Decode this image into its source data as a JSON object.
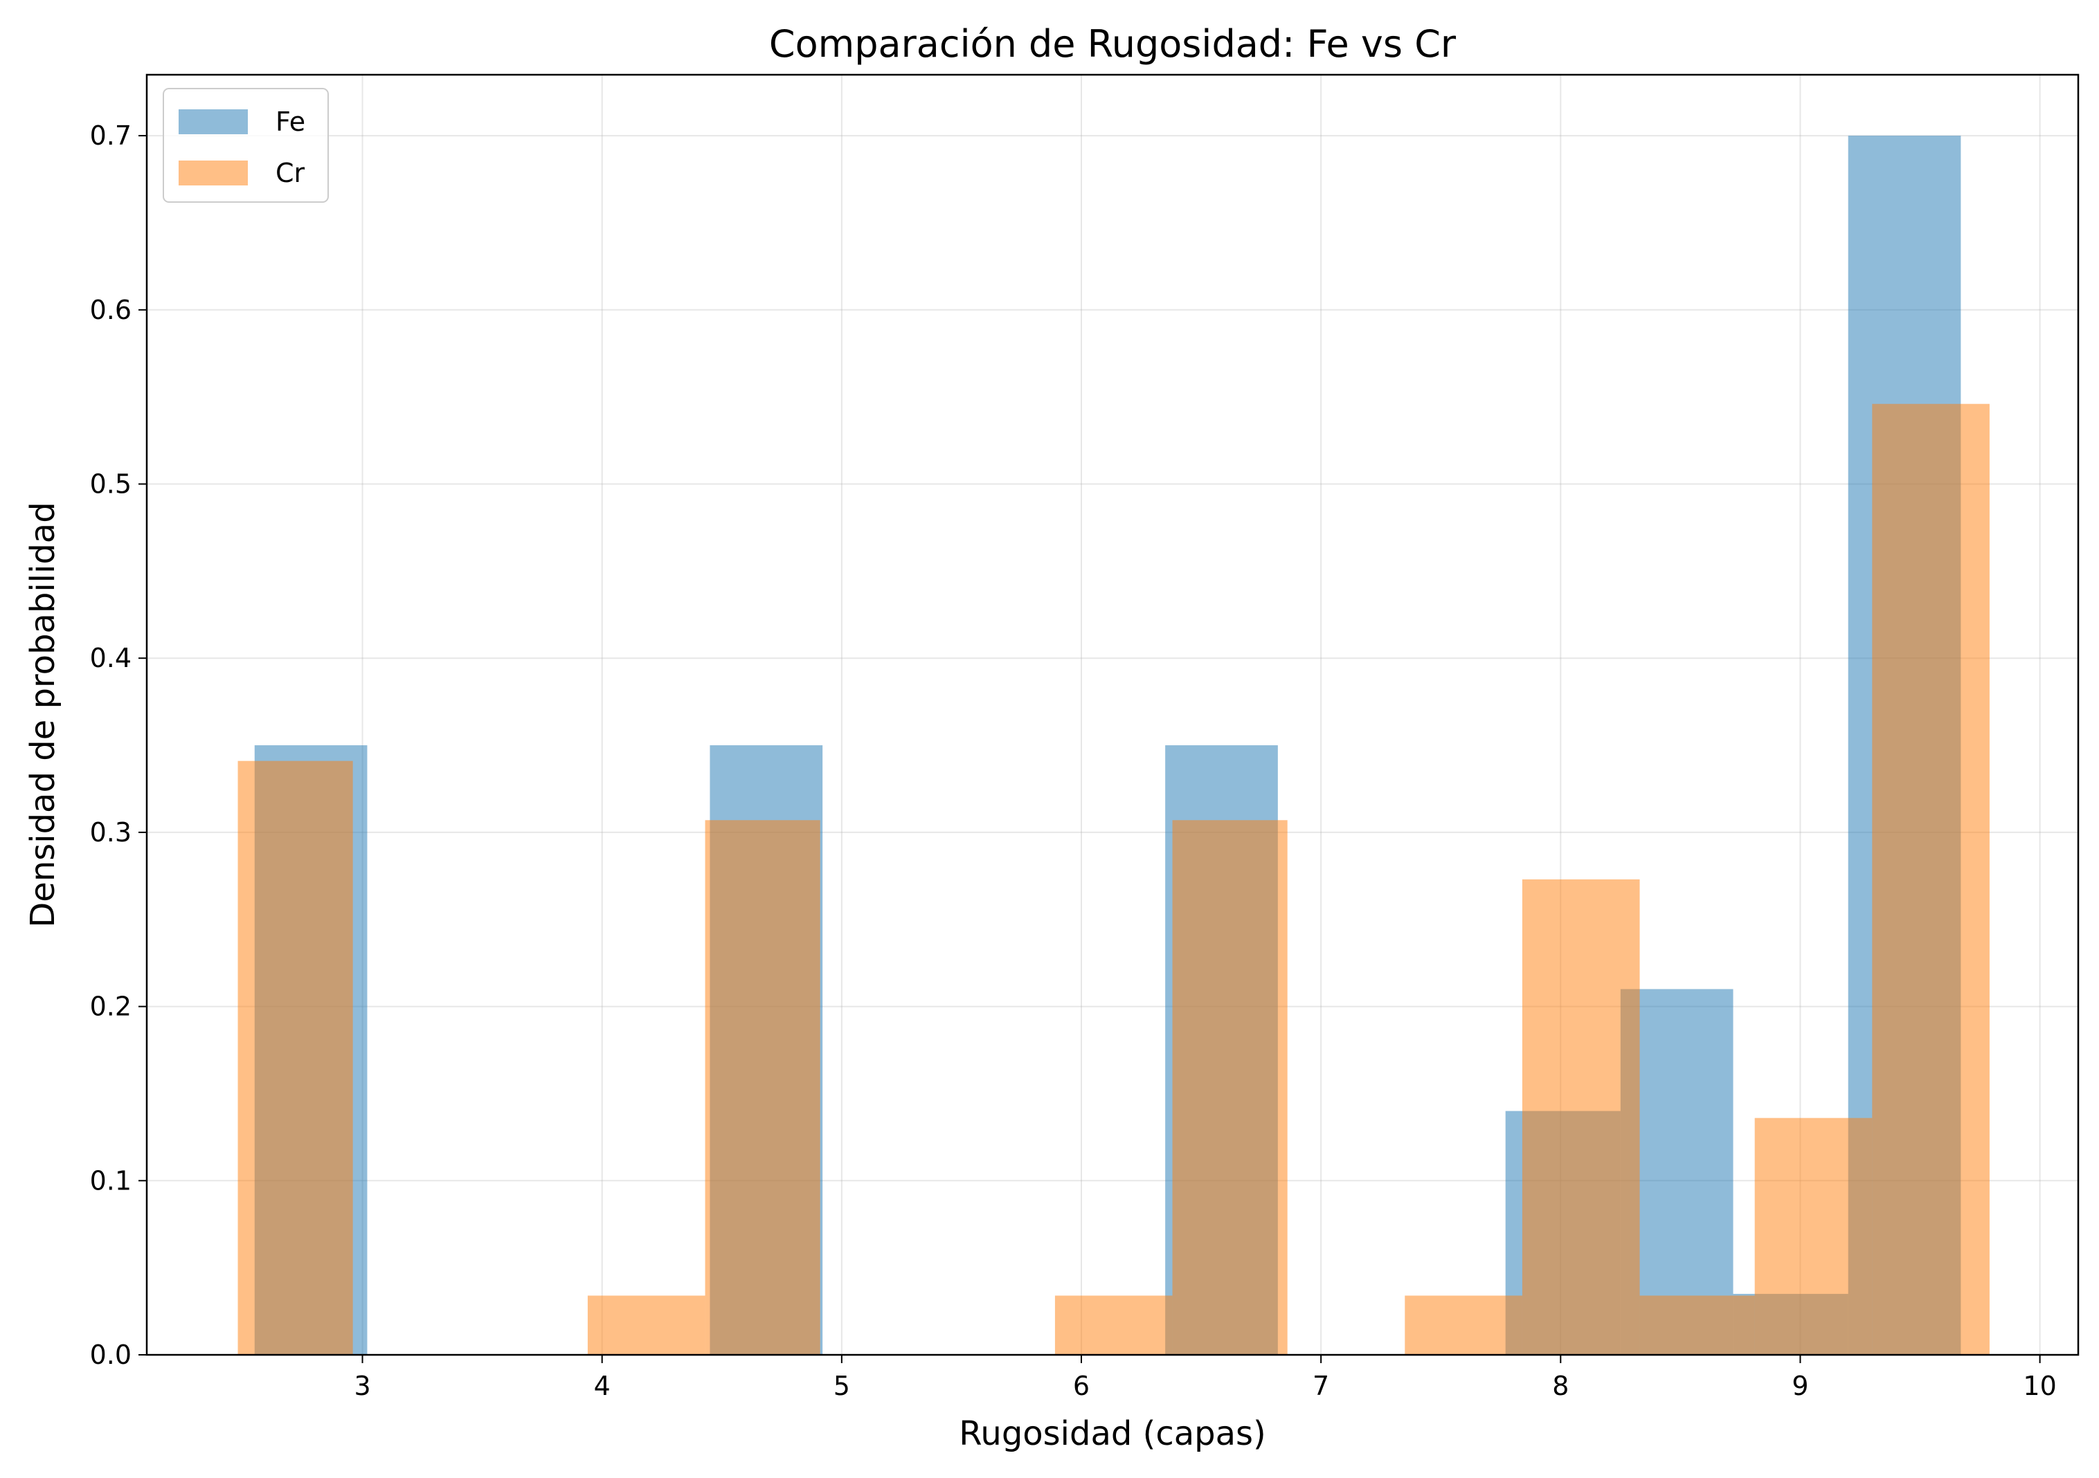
{
  "chart_data": {
    "type": "bar",
    "title": "Comparación de Rugosidad: Fe vs Cr",
    "xlabel": "Rugosidad (capas)",
    "ylabel": "Densidad de probabilidad",
    "xlim": [
      2.1,
      10.16
    ],
    "ylim": [
      0,
      0.735
    ],
    "xticks": [
      "3",
      "4",
      "5",
      "6",
      "7",
      "8",
      "9",
      "10"
    ],
    "yticks": [
      "0.0",
      "0.1",
      "0.2",
      "0.3",
      "0.4",
      "0.5",
      "0.6",
      "0.7"
    ],
    "grid": true,
    "legend_position": "top-left",
    "alpha": 0.5,
    "series": [
      {
        "name": "Fe",
        "color": "#1f77b4",
        "bins": [
          {
            "x0": 2.55,
            "x1": 3.02,
            "density": 0.35
          },
          {
            "x0": 3.02,
            "x1": 3.5,
            "density": 0.0
          },
          {
            "x0": 3.5,
            "x1": 3.97,
            "density": 0.0
          },
          {
            "x0": 3.97,
            "x1": 4.45,
            "density": 0.0
          },
          {
            "x0": 4.45,
            "x1": 4.92,
            "density": 0.35
          },
          {
            "x0": 4.92,
            "x1": 5.4,
            "density": 0.0
          },
          {
            "x0": 5.4,
            "x1": 5.87,
            "density": 0.0
          },
          {
            "x0": 5.87,
            "x1": 6.35,
            "density": 0.0
          },
          {
            "x0": 6.35,
            "x1": 6.82,
            "density": 0.35
          },
          {
            "x0": 6.82,
            "x1": 7.3,
            "density": 0.0
          },
          {
            "x0": 7.3,
            "x1": 7.77,
            "density": 0.0
          },
          {
            "x0": 7.77,
            "x1": 8.25,
            "density": 0.14
          },
          {
            "x0": 8.25,
            "x1": 8.72,
            "density": 0.21
          },
          {
            "x0": 8.72,
            "x1": 9.2,
            "density": 0.035
          },
          {
            "x0": 9.2,
            "x1": 9.67,
            "density": 0.7
          }
        ]
      },
      {
        "name": "Cr",
        "color": "#ff7f0e",
        "bins": [
          {
            "x0": 2.48,
            "x1": 2.96,
            "density": 0.341
          },
          {
            "x0": 2.96,
            "x1": 3.45,
            "density": 0.0
          },
          {
            "x0": 3.45,
            "x1": 3.94,
            "density": 0.0
          },
          {
            "x0": 3.94,
            "x1": 4.43,
            "density": 0.034
          },
          {
            "x0": 4.43,
            "x1": 4.91,
            "density": 0.307
          },
          {
            "x0": 4.91,
            "x1": 5.4,
            "density": 0.0
          },
          {
            "x0": 5.4,
            "x1": 5.89,
            "density": 0.0
          },
          {
            "x0": 5.89,
            "x1": 6.38,
            "density": 0.034
          },
          {
            "x0": 6.38,
            "x1": 6.86,
            "density": 0.307
          },
          {
            "x0": 6.86,
            "x1": 7.35,
            "density": 0.0
          },
          {
            "x0": 7.35,
            "x1": 7.84,
            "density": 0.034
          },
          {
            "x0": 7.84,
            "x1": 8.33,
            "density": 0.273
          },
          {
            "x0": 8.33,
            "x1": 8.81,
            "density": 0.034
          },
          {
            "x0": 8.81,
            "x1": 9.3,
            "density": 0.136
          },
          {
            "x0": 9.3,
            "x1": 9.79,
            "density": 0.546
          }
        ]
      }
    ]
  }
}
